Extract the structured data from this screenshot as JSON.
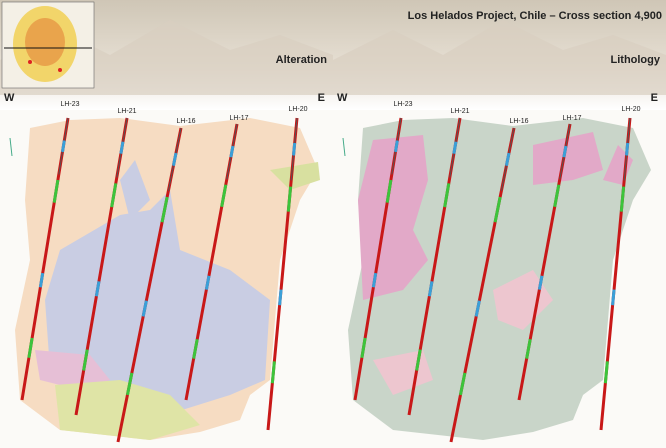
{
  "title": "Los Helados Project, Chile – Cross section 4,900",
  "panels": [
    {
      "label": "Alteration",
      "west": "W",
      "east": "E",
      "holes": [
        "LH-23",
        "LH-21",
        "LH-16",
        "LH-17",
        "LH-20"
      ]
    },
    {
      "label": "Lithology",
      "west": "W",
      "east": "E",
      "holes": [
        "LH-23",
        "LH-21",
        "LH-16",
        "LH-17",
        "LH-20"
      ]
    }
  ]
}
